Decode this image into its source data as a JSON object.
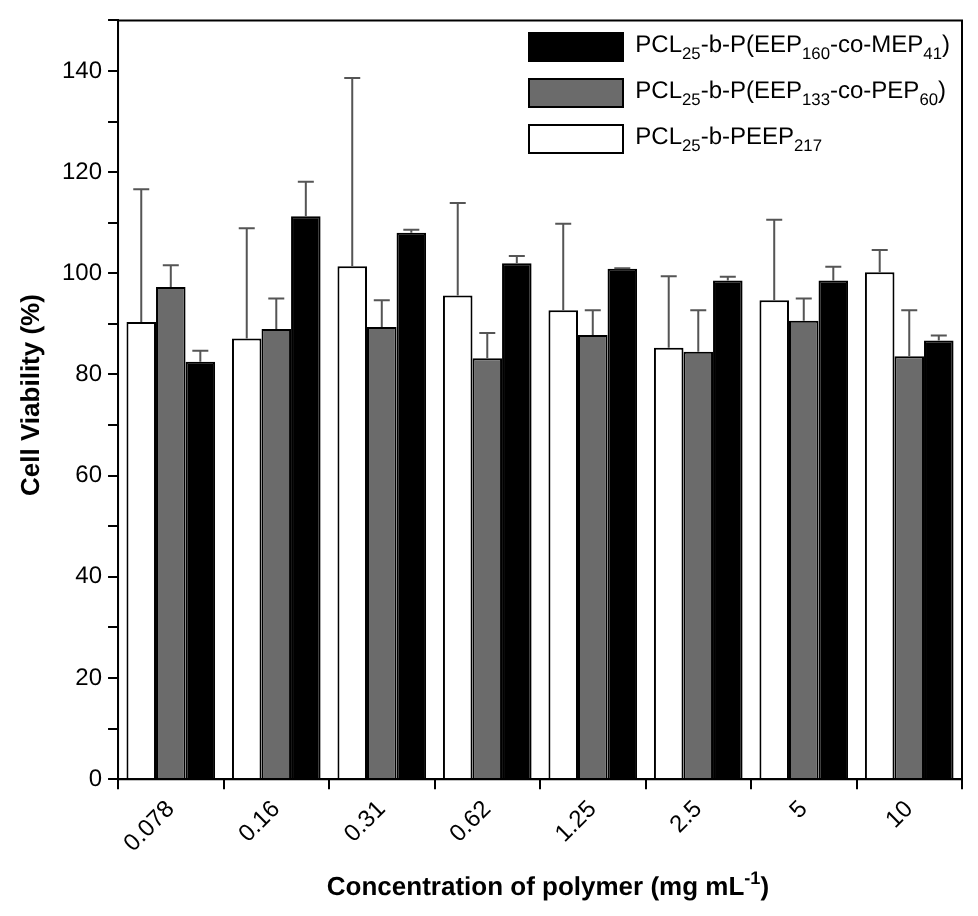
{
  "chart_data": {
    "type": "bar",
    "xlabel": "Concentration of polymer (mg mL$^{-1}$)",
    "ylabel": "Cell Viability (%)",
    "categories": [
      "0.078",
      "0.16",
      "0.31",
      "0.62",
      "1.25",
      "2.5",
      "5",
      "10"
    ],
    "series": [
      {
        "name": "PCL$_{25}$-b-PEEP$_{217}$",
        "color": "#ffffff",
        "values": [
          90.4,
          87.1,
          101.4,
          95.6,
          92.7,
          85.3,
          94.7,
          100.2
        ],
        "errors": [
          [
            90.4,
            116.6
          ],
          [
            87.1,
            108.9
          ],
          [
            101.4,
            138.6
          ],
          [
            95.6,
            113.9
          ],
          [
            92.7,
            109.8
          ],
          [
            85.3,
            99.4
          ],
          [
            94.7,
            110.6
          ],
          [
            100.2,
            104.6
          ]
        ]
      },
      {
        "name": "PCL$_{25}$-b-P(EEP$_{133}$-co-PEP$_{60}$)",
        "color": "#6b6b6b",
        "values": [
          97.3,
          89,
          89.4,
          83.2,
          87.8,
          84.5,
          90.6,
          83.6
        ],
        "errors": [
          [
            97.3,
            101.6
          ],
          [
            89,
            95
          ],
          [
            89.4,
            94.7
          ],
          [
            83.2,
            88.2
          ],
          [
            87.8,
            92.7
          ],
          [
            84.5,
            92.7
          ],
          [
            90.6,
            95
          ],
          [
            83.6,
            92.7
          ]
        ]
      },
      {
        "name": "PCL$_{25}$-b-P(EEP$_{160}$-co-MEP$_{41}$)",
        "color": "#000000",
        "values": [
          82.5,
          111.3,
          108,
          102,
          100.9,
          98.6,
          98.6,
          86.7
        ],
        "errors": [
          [
            82.5,
            84.7
          ],
          [
            111.3,
            118.1
          ],
          [
            108,
            108.6
          ],
          [
            102,
            103.4
          ],
          [
            100.9,
            101
          ],
          [
            98.6,
            99.3
          ],
          [
            98.6,
            101.3
          ],
          [
            86.7,
            87.7
          ]
        ]
      }
    ],
    "ylim": [
      0,
      150
    ],
    "yticks": [
      0,
      {
        "value": 10,
        "label": null
      },
      20,
      {
        "value": 30,
        "label": null
      },
      40,
      {
        "value": 50,
        "label": null
      },
      60,
      {
        "value": 70,
        "label": null
      },
      80,
      {
        "value": 90,
        "label": null
      },
      100,
      {
        "value": 110,
        "label": null
      },
      120,
      {
        "value": 130,
        "label": null
      },
      140,
      {
        "value": 150,
        "label": null
      }
    ],
    "grid": false,
    "legend": "top right"
  }
}
